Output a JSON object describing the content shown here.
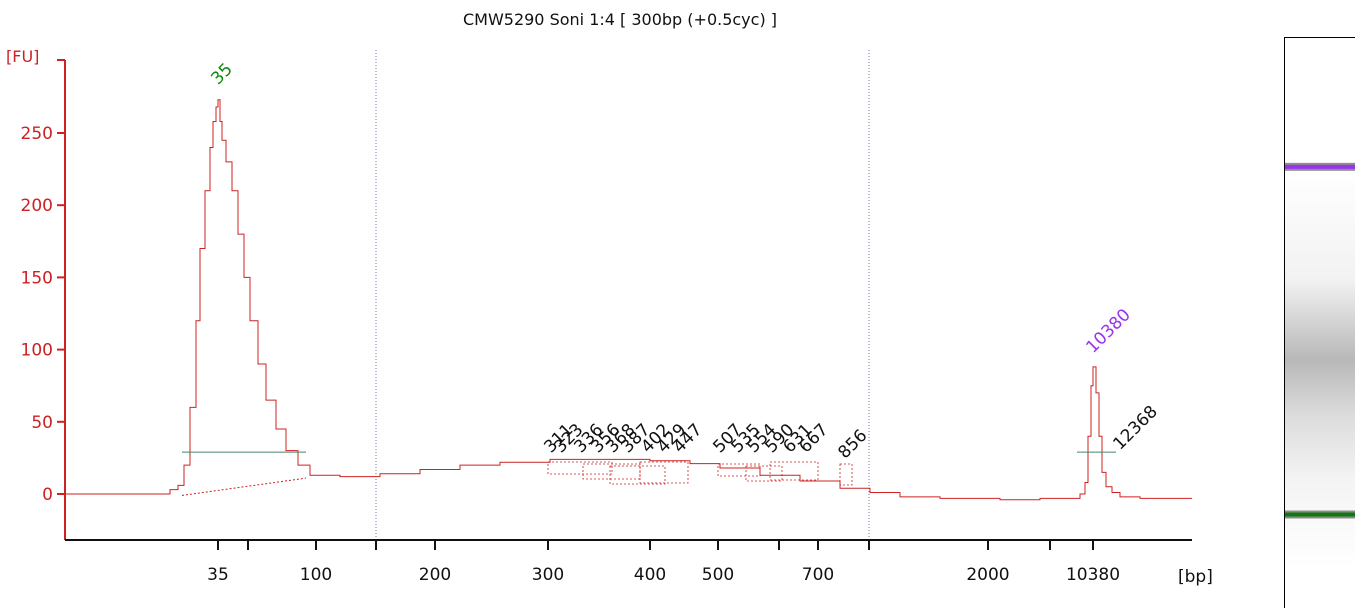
{
  "chart_data": {
    "type": "line",
    "title": "CMW5290 Soni 1:4  [ 300bp (+0.5cyc) ]",
    "ylabel": "[FU]",
    "xlabel": "[bp]",
    "ylim": [
      -30,
      300
    ],
    "yticks": [
      0,
      50,
      100,
      150,
      200,
      250
    ],
    "xticks": [
      {
        "x": 218,
        "label": "35"
      },
      {
        "x": 248,
        "label": ""
      },
      {
        "x": 316,
        "label": "100"
      },
      {
        "x": 376,
        "label": ""
      },
      {
        "x": 435,
        "label": "200"
      },
      {
        "x": 548,
        "label": "300"
      },
      {
        "x": 650,
        "label": "400"
      },
      {
        "x": 718,
        "label": "500"
      },
      {
        "x": 779,
        "label": ""
      },
      {
        "x": 818,
        "label": "700"
      },
      {
        "x": 869,
        "label": ""
      },
      {
        "x": 988,
        "label": "2000"
      },
      {
        "x": 1050,
        "label": ""
      },
      {
        "x": 1093,
        "label": "10380"
      }
    ],
    "series": [
      {
        "color": "#cc2222",
        "x": [
          65,
          150,
          170,
          178,
          184,
          190,
          196,
          200,
          205,
          210,
          213,
          216,
          218,
          220,
          222,
          226,
          232,
          238,
          244,
          250,
          258,
          266,
          276,
          286,
          298,
          310,
          340,
          380,
          420,
          460,
          500,
          550,
          600,
          650,
          690,
          720,
          760,
          800,
          840,
          870,
          900,
          940,
          1000,
          1040,
          1070,
          1080,
          1085,
          1088,
          1091,
          1093,
          1096,
          1099,
          1102,
          1106,
          1112,
          1120,
          1140,
          1192
        ],
        "y": [
          0,
          0,
          3,
          6,
          20,
          60,
          120,
          170,
          210,
          240,
          258,
          268,
          273,
          258,
          245,
          230,
          210,
          180,
          150,
          120,
          90,
          65,
          45,
          30,
          20,
          13,
          12,
          14,
          17,
          20,
          22,
          24,
          24,
          23,
          21,
          18,
          13,
          9,
          4,
          1,
          -2,
          -3,
          -4,
          -3,
          -3,
          0,
          8,
          40,
          75,
          88,
          70,
          40,
          15,
          5,
          1,
          -2,
          -3,
          -3
        ]
      }
    ],
    "peaks": [
      {
        "x": 218,
        "label": "35",
        "color": "#118811"
      },
      {
        "x": 1093,
        "label": "10380",
        "color": "#9933ee"
      },
      {
        "x": 551,
        "label": "311",
        "color": "#111111"
      },
      {
        "x": 561,
        "label": "323",
        "color": "#111111"
      },
      {
        "x": 581,
        "label": "336",
        "color": "#111111"
      },
      {
        "x": 598,
        "label": "356",
        "color": "#111111"
      },
      {
        "x": 613,
        "label": "368",
        "color": "#111111"
      },
      {
        "x": 628,
        "label": "387",
        "color": "#111111"
      },
      {
        "x": 648,
        "label": "402",
        "color": "#111111"
      },
      {
        "x": 664,
        "label": "429",
        "color": "#111111"
      },
      {
        "x": 680,
        "label": "447",
        "color": "#111111"
      },
      {
        "x": 720,
        "label": "507",
        "color": "#111111"
      },
      {
        "x": 738,
        "label": "535",
        "color": "#111111"
      },
      {
        "x": 754,
        "label": "554",
        "color": "#111111"
      },
      {
        "x": 772,
        "label": "590",
        "color": "#111111"
      },
      {
        "x": 790,
        "label": "631",
        "color": "#111111"
      },
      {
        "x": 806,
        "label": "667",
        "color": "#111111"
      },
      {
        "x": 845,
        "label": "856",
        "color": "#111111"
      },
      {
        "x": 1120,
        "label": "12368",
        "color": "#111111"
      }
    ],
    "region_markers": [
      376,
      869
    ],
    "colors": {
      "axis": "#cc2222",
      "trace": "#cc2222",
      "marker_peak": "#118811",
      "ladder_peak": "#9933ee",
      "baseline": "#448866"
    }
  },
  "gel": {
    "bands": [
      {
        "position": 0.226,
        "color": "#9933ee"
      },
      {
        "position": 0.836,
        "color": "#117711"
      }
    ]
  }
}
